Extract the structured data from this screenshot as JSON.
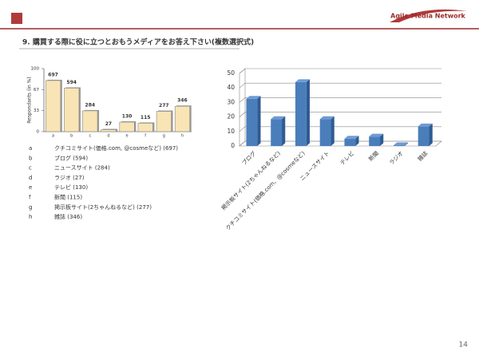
{
  "logo": "Agile Media Network",
  "title": "9. 購買する際に役に立つとおもうメディアをお答え下さい(複数選択式)",
  "page_number": "14",
  "chart_data": [
    {
      "type": "bar",
      "ylabel": "Respondants (in %)",
      "categories": [
        "a",
        "b",
        "c",
        "d",
        "e",
        "f",
        "g",
        "h"
      ],
      "values": [
        697,
        594,
        284,
        27,
        130,
        115,
        277,
        346
      ],
      "color": "#f8e4b4",
      "ylim": [
        0,
        860
      ],
      "yticks": [
        0,
        {
          "value": 287,
          "label": "33"
        },
        {
          "value": 573,
          "label": "67"
        },
        {
          "value": 860,
          "label": "100"
        }
      ],
      "grid": false,
      "legend": [
        {
          "key": "a",
          "label": "クチコミサイト(価格.com, @cosmeなど) (697)"
        },
        {
          "key": "b",
          "label": "ブログ (594)"
        },
        {
          "key": "c",
          "label": "ニュースサイト (284)"
        },
        {
          "key": "d",
          "label": "ラジオ (27)"
        },
        {
          "key": "e",
          "label": "テレビ (130)"
        },
        {
          "key": "f",
          "label": "新聞 (115)"
        },
        {
          "key": "g",
          "label": "掲示板サイト(2ちゃんねるなど) (277)"
        },
        {
          "key": "h",
          "label": "雑誌 (346)"
        }
      ]
    },
    {
      "type": "bar3d",
      "categories": [
        "ブログ",
        "掲示板サイト(2ちゃんねるなど)",
        "クチコミサイト(価格.com、@cosmeなど)",
        "ニュースサイト",
        "テレビ",
        "新聞",
        "ラジオ",
        "雑誌"
      ],
      "values": [
        32.5,
        18.5,
        44,
        18.5,
        5,
        6.5,
        0.5,
        13.5
      ],
      "color": "#4a7ebb",
      "ylim": [
        0,
        50
      ],
      "yticks": [
        0,
        10,
        20,
        30,
        40,
        50
      ],
      "grid": true
    }
  ]
}
